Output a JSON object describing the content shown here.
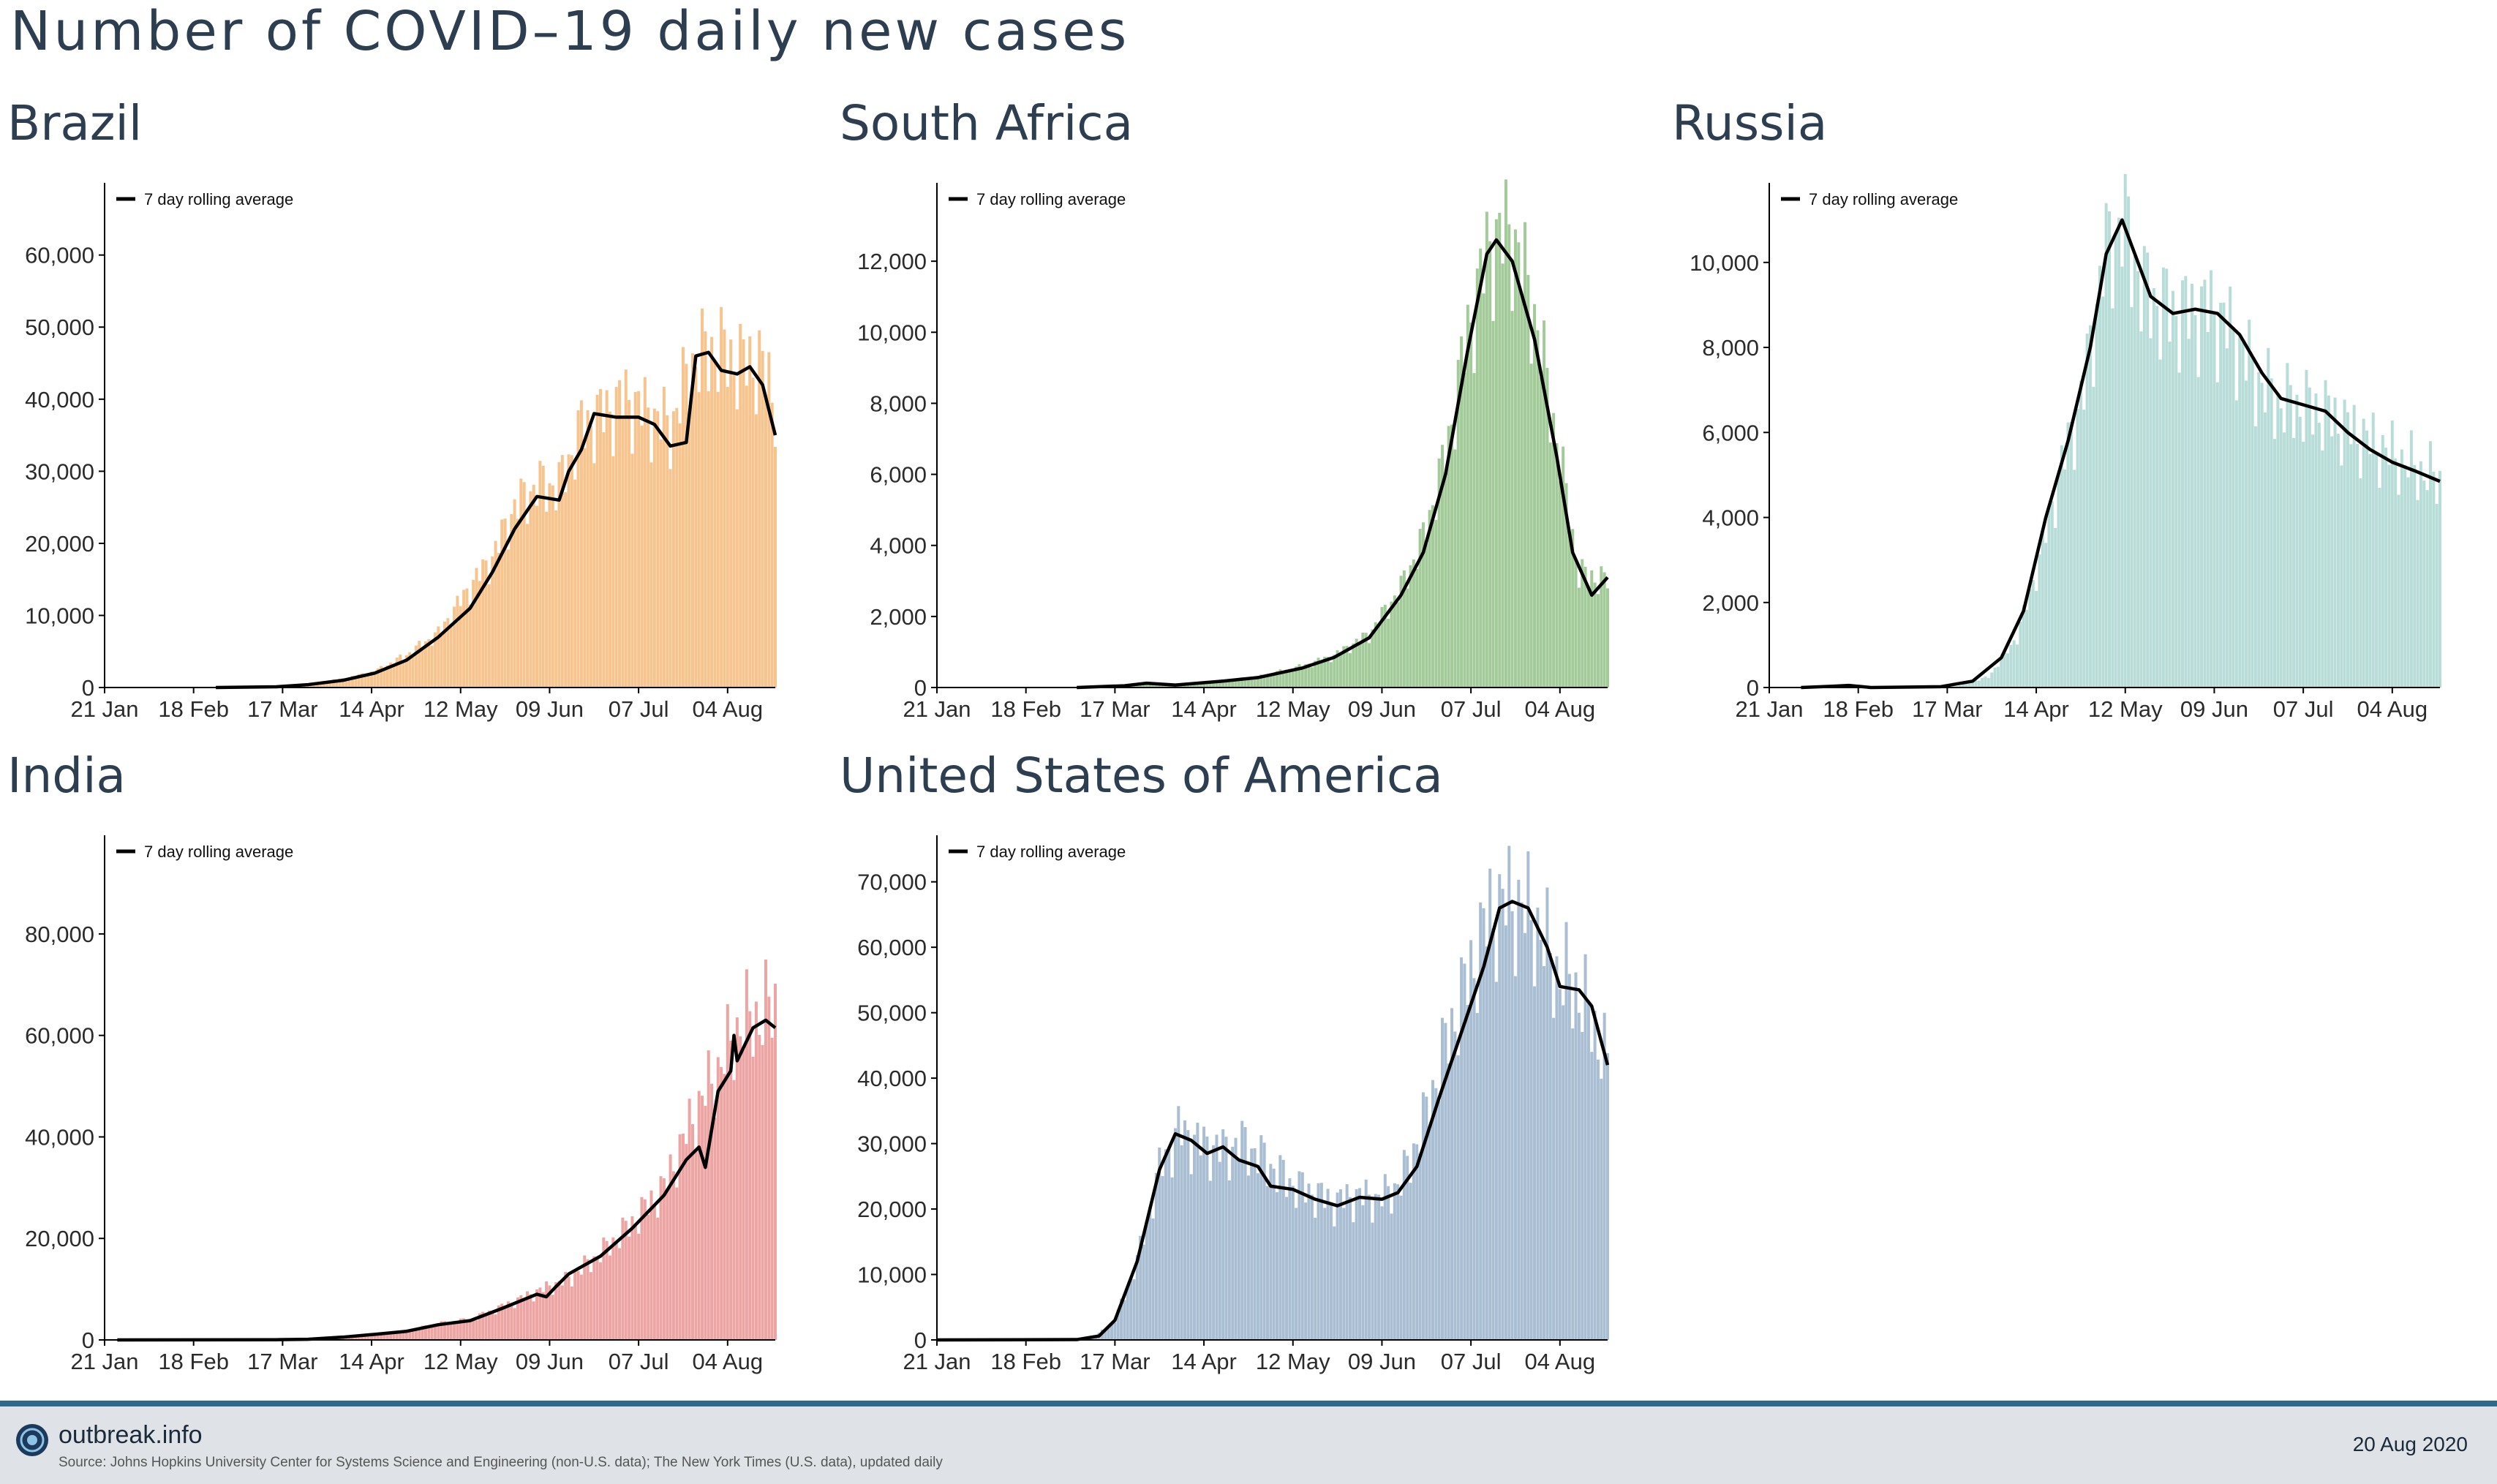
{
  "title": "Number of COVID–19 daily new cases",
  "legend_label": "7 day rolling average",
  "x_tick_labels": [
    "21 Jan",
    "18 Feb",
    "17 Mar",
    "14 Apr",
    "12 May",
    "09 Jun",
    "07 Jul",
    "04 Aug"
  ],
  "footer": {
    "brand": "outbreak.info",
    "source": "Source: Johns Hopkins University Center for Systems Science and Engineering (non-U.S. data); The New York Times (U.S. data), updated daily",
    "date": "20 Aug 2020",
    "logo_icon": "globe-logo-icon"
  },
  "chart_data": [
    {
      "type": "bar",
      "title": "Brazil",
      "color": "#f8c48e",
      "line_color": "#000000",
      "x_range": [
        "2020-01-21",
        "2020-08-19"
      ],
      "ylim": [
        0,
        69000
      ],
      "y_ticks": [
        0,
        10000,
        20000,
        30000,
        40000,
        50000,
        60000
      ],
      "y_tick_labels": [
        "0",
        "10,000",
        "20,000",
        "30,000",
        "40,000",
        "50,000",
        "60,000"
      ],
      "series_start": "2020-02-25",
      "bar_anchors": [
        [
          "2020-02-25",
          0
        ],
        [
          "2020-03-15",
          100
        ],
        [
          "2020-03-25",
          500
        ],
        [
          "2020-04-05",
          1200
        ],
        [
          "2020-04-15",
          2200
        ],
        [
          "2020-04-25",
          4500
        ],
        [
          "2020-05-05",
          7500
        ],
        [
          "2020-05-15",
          14000
        ],
        [
          "2020-05-22",
          18000
        ],
        [
          "2020-05-29",
          25000
        ],
        [
          "2020-06-05",
          28000
        ],
        [
          "2020-06-12",
          28000
        ],
        [
          "2020-06-19",
          36000
        ],
        [
          "2020-06-26",
          38000
        ],
        [
          "2020-07-03",
          40000
        ],
        [
          "2020-07-10",
          38000
        ],
        [
          "2020-07-17",
          36000
        ],
        [
          "2020-07-24",
          45000
        ],
        [
          "2020-07-31",
          47000
        ],
        [
          "2020-08-07",
          45000
        ],
        [
          "2020-08-14",
          45000
        ],
        [
          "2020-08-19",
          40000
        ]
      ],
      "rolling_avg": [
        [
          "2020-02-25",
          0
        ],
        [
          "2020-03-15",
          100
        ],
        [
          "2020-03-25",
          400
        ],
        [
          "2020-04-05",
          1000
        ],
        [
          "2020-04-15",
          2000
        ],
        [
          "2020-04-25",
          3800
        ],
        [
          "2020-05-05",
          7000
        ],
        [
          "2020-05-15",
          11000
        ],
        [
          "2020-05-22",
          16000
        ],
        [
          "2020-05-29",
          22000
        ],
        [
          "2020-06-05",
          26500
        ],
        [
          "2020-06-12",
          26000
        ],
        [
          "2020-06-15",
          30000
        ],
        [
          "2020-06-19",
          33000
        ],
        [
          "2020-06-23",
          38000
        ],
        [
          "2020-06-30",
          37500
        ],
        [
          "2020-07-07",
          37500
        ],
        [
          "2020-07-12",
          36500
        ],
        [
          "2020-07-17",
          33500
        ],
        [
          "2020-07-22",
          34000
        ],
        [
          "2020-07-25",
          46000
        ],
        [
          "2020-07-29",
          46500
        ],
        [
          "2020-08-02",
          44000
        ],
        [
          "2020-08-07",
          43500
        ],
        [
          "2020-08-11",
          44500
        ],
        [
          "2020-08-15",
          42000
        ],
        [
          "2020-08-19",
          35000
        ]
      ]
    },
    {
      "type": "bar",
      "title": "South Africa",
      "color": "#a3cb99",
      "line_color": "#000000",
      "x_range": [
        "2020-01-21",
        "2020-08-19"
      ],
      "ylim": [
        0,
        14000
      ],
      "y_ticks": [
        0,
        2000,
        4000,
        6000,
        8000,
        10000,
        12000
      ],
      "y_tick_labels": [
        "0",
        "2,000",
        "4,000",
        "6,000",
        "8,000",
        "10,000",
        "12,000"
      ],
      "series_start": "2020-03-05",
      "bar_anchors": [
        [
          "2020-03-05",
          0
        ],
        [
          "2020-03-20",
          60
        ],
        [
          "2020-03-27",
          150
        ],
        [
          "2020-04-05",
          70
        ],
        [
          "2020-04-20",
          200
        ],
        [
          "2020-05-01",
          300
        ],
        [
          "2020-05-15",
          600
        ],
        [
          "2020-05-25",
          900
        ],
        [
          "2020-06-05",
          1500
        ],
        [
          "2020-06-15",
          2800
        ],
        [
          "2020-06-22",
          4200
        ],
        [
          "2020-06-29",
          6500
        ],
        [
          "2020-07-06",
          10000
        ],
        [
          "2020-07-13",
          12500
        ],
        [
          "2020-07-20",
          12800
        ],
        [
          "2020-07-27",
          10500
        ],
        [
          "2020-08-03",
          7000
        ],
        [
          "2020-08-10",
          3200
        ],
        [
          "2020-08-19",
          3000
        ]
      ],
      "rolling_avg": [
        [
          "2020-03-05",
          0
        ],
        [
          "2020-03-20",
          50
        ],
        [
          "2020-03-27",
          120
        ],
        [
          "2020-04-05",
          70
        ],
        [
          "2020-04-20",
          180
        ],
        [
          "2020-05-01",
          280
        ],
        [
          "2020-05-15",
          550
        ],
        [
          "2020-05-25",
          850
        ],
        [
          "2020-06-05",
          1400
        ],
        [
          "2020-06-15",
          2600
        ],
        [
          "2020-06-22",
          3800
        ],
        [
          "2020-06-29",
          6000
        ],
        [
          "2020-07-06",
          9500
        ],
        [
          "2020-07-12",
          12200
        ],
        [
          "2020-07-15",
          12600
        ],
        [
          "2020-07-20",
          12000
        ],
        [
          "2020-07-27",
          9800
        ],
        [
          "2020-08-03",
          6500
        ],
        [
          "2020-08-08",
          3800
        ],
        [
          "2020-08-14",
          2600
        ],
        [
          "2020-08-19",
          3100
        ]
      ]
    },
    {
      "type": "bar",
      "title": "Russia",
      "color": "#b8ddd9",
      "line_color": "#000000",
      "x_range": [
        "2020-01-21",
        "2020-08-19"
      ],
      "ylim": [
        0,
        11700
      ],
      "y_ticks": [
        0,
        2000,
        4000,
        6000,
        8000,
        10000
      ],
      "y_tick_labels": [
        "0",
        "2,000",
        "4,000",
        "6,000",
        "8,000",
        "10,000"
      ],
      "series_start": "2020-01-31",
      "bar_anchors": [
        [
          "2020-01-31",
          0
        ],
        [
          "2020-02-15",
          40
        ],
        [
          "2020-03-01",
          0
        ],
        [
          "2020-03-20",
          30
        ],
        [
          "2020-03-30",
          250
        ],
        [
          "2020-04-08",
          1200
        ],
        [
          "2020-04-15",
          3000
        ],
        [
          "2020-04-22",
          5200
        ],
        [
          "2020-04-29",
          7000
        ],
        [
          "2020-05-05",
          10000
        ],
        [
          "2020-05-11",
          11000
        ],
        [
          "2020-05-18",
          9300
        ],
        [
          "2020-05-25",
          8900
        ],
        [
          "2020-06-01",
          8800
        ],
        [
          "2020-06-08",
          8900
        ],
        [
          "2020-06-15",
          8300
        ],
        [
          "2020-06-22",
          7300
        ],
        [
          "2020-06-29",
          6700
        ],
        [
          "2020-07-13",
          6500
        ],
        [
          "2020-07-27",
          5800
        ],
        [
          "2020-08-10",
          5200
        ],
        [
          "2020-08-19",
          4850
        ]
      ],
      "rolling_avg": [
        [
          "2020-01-31",
          0
        ],
        [
          "2020-02-10",
          30
        ],
        [
          "2020-02-15",
          50
        ],
        [
          "2020-02-22",
          0
        ],
        [
          "2020-03-15",
          20
        ],
        [
          "2020-03-25",
          150
        ],
        [
          "2020-04-03",
          700
        ],
        [
          "2020-04-10",
          1800
        ],
        [
          "2020-04-17",
          4000
        ],
        [
          "2020-04-24",
          5800
        ],
        [
          "2020-05-01",
          8000
        ],
        [
          "2020-05-06",
          10200
        ],
        [
          "2020-05-11",
          11000
        ],
        [
          "2020-05-15",
          10200
        ],
        [
          "2020-05-20",
          9200
        ],
        [
          "2020-05-27",
          8800
        ],
        [
          "2020-06-03",
          8900
        ],
        [
          "2020-06-10",
          8800
        ],
        [
          "2020-06-17",
          8300
        ],
        [
          "2020-06-24",
          7400
        ],
        [
          "2020-06-30",
          6800
        ],
        [
          "2020-07-07",
          6650
        ],
        [
          "2020-07-14",
          6500
        ],
        [
          "2020-07-21",
          6000
        ],
        [
          "2020-07-28",
          5600
        ],
        [
          "2020-08-04",
          5300
        ],
        [
          "2020-08-11",
          5100
        ],
        [
          "2020-08-19",
          4850
        ]
      ]
    },
    {
      "type": "bar",
      "title": "India",
      "color": "#eda5a4",
      "line_color": "#000000",
      "x_range": [
        "2020-01-21",
        "2020-08-19"
      ],
      "ylim": [
        0,
        98000
      ],
      "y_ticks": [
        0,
        20000,
        40000,
        60000,
        80000
      ],
      "y_tick_labels": [
        "0",
        "20,000",
        "40,000",
        "60,000",
        "80,000"
      ],
      "series_start": "2020-01-25",
      "bar_anchors": [
        [
          "2020-01-25",
          0
        ],
        [
          "2020-03-15",
          50
        ],
        [
          "2020-03-25",
          150
        ],
        [
          "2020-04-05",
          600
        ],
        [
          "2020-04-15",
          1200
        ],
        [
          "2020-04-25",
          1800
        ],
        [
          "2020-05-05",
          3200
        ],
        [
          "2020-05-15",
          4000
        ],
        [
          "2020-05-25",
          6500
        ],
        [
          "2020-06-05",
          9500
        ],
        [
          "2020-06-15",
          12000
        ],
        [
          "2020-06-25",
          17000
        ],
        [
          "2020-07-05",
          23000
        ],
        [
          "2020-07-15",
          30000
        ],
        [
          "2020-07-25",
          45000
        ],
        [
          "2020-08-01",
          53000
        ],
        [
          "2020-08-08",
          62000
        ],
        [
          "2020-08-15",
          64000
        ],
        [
          "2020-08-19",
          66000
        ]
      ],
      "rolling_avg": [
        [
          "2020-01-25",
          0
        ],
        [
          "2020-03-15",
          40
        ],
        [
          "2020-03-25",
          130
        ],
        [
          "2020-04-05",
          550
        ],
        [
          "2020-04-15",
          1100
        ],
        [
          "2020-04-25",
          1700
        ],
        [
          "2020-05-05",
          3000
        ],
        [
          "2020-05-15",
          3800
        ],
        [
          "2020-05-25",
          6200
        ],
        [
          "2020-06-05",
          9000
        ],
        [
          "2020-06-08",
          8500
        ],
        [
          "2020-06-11",
          10500
        ],
        [
          "2020-06-15",
          13000
        ],
        [
          "2020-06-25",
          16500
        ],
        [
          "2020-07-05",
          22000
        ],
        [
          "2020-07-15",
          28500
        ],
        [
          "2020-07-22",
          35500
        ],
        [
          "2020-07-26",
          38000
        ],
        [
          "2020-07-28",
          34000
        ],
        [
          "2020-08-01",
          49000
        ],
        [
          "2020-08-05",
          53000
        ],
        [
          "2020-08-06",
          60000
        ],
        [
          "2020-08-07",
          55000
        ],
        [
          "2020-08-12",
          61500
        ],
        [
          "2020-08-16",
          63000
        ],
        [
          "2020-08-19",
          61500
        ]
      ]
    },
    {
      "type": "bar",
      "title": "United States of America",
      "color": "#a9bed3",
      "line_color": "#000000",
      "x_range": [
        "2020-01-21",
        "2020-08-19"
      ],
      "ylim": [
        0,
        76000
      ],
      "y_ticks": [
        0,
        10000,
        20000,
        30000,
        40000,
        50000,
        60000,
        70000
      ],
      "y_tick_labels": [
        "0",
        "10,000",
        "20,000",
        "30,000",
        "40,000",
        "50,000",
        "60,000",
        "70,000"
      ],
      "series_start": "2020-01-21",
      "bar_anchors": [
        [
          "2020-01-21",
          0
        ],
        [
          "2020-03-10",
          200
        ],
        [
          "2020-03-17",
          3000
        ],
        [
          "2020-03-24",
          12000
        ],
        [
          "2020-03-31",
          26000
        ],
        [
          "2020-04-06",
          32000
        ],
        [
          "2020-04-13",
          30000
        ],
        [
          "2020-04-20",
          29000
        ],
        [
          "2020-04-27",
          30000
        ],
        [
          "2020-05-04",
          27000
        ],
        [
          "2020-05-11",
          24000
        ],
        [
          "2020-05-18",
          22500
        ],
        [
          "2020-05-25",
          21000
        ],
        [
          "2020-06-01",
          22000
        ],
        [
          "2020-06-08",
          21500
        ],
        [
          "2020-06-15",
          24000
        ],
        [
          "2020-06-22",
          33000
        ],
        [
          "2020-06-29",
          45000
        ],
        [
          "2020-07-06",
          55000
        ],
        [
          "2020-07-13",
          65000
        ],
        [
          "2020-07-20",
          67000
        ],
        [
          "2020-07-27",
          64000
        ],
        [
          "2020-08-03",
          56000
        ],
        [
          "2020-08-10",
          53000
        ],
        [
          "2020-08-17",
          45000
        ],
        [
          "2020-08-19",
          42000
        ]
      ],
      "rolling_avg": [
        [
          "2020-01-21",
          0
        ],
        [
          "2020-03-05",
          50
        ],
        [
          "2020-03-12",
          600
        ],
        [
          "2020-03-17",
          3000
        ],
        [
          "2020-03-24",
          12000
        ],
        [
          "2020-03-31",
          26000
        ],
        [
          "2020-04-05",
          31500
        ],
        [
          "2020-04-10",
          30500
        ],
        [
          "2020-04-15",
          28500
        ],
        [
          "2020-04-20",
          29500
        ],
        [
          "2020-04-25",
          27500
        ],
        [
          "2020-05-01",
          26500
        ],
        [
          "2020-05-05",
          23500
        ],
        [
          "2020-05-12",
          23000
        ],
        [
          "2020-05-19",
          21500
        ],
        [
          "2020-05-26",
          20500
        ],
        [
          "2020-06-02",
          21800
        ],
        [
          "2020-06-09",
          21500
        ],
        [
          "2020-06-14",
          22500
        ],
        [
          "2020-06-20",
          26500
        ],
        [
          "2020-06-27",
          37000
        ],
        [
          "2020-07-04",
          47000
        ],
        [
          "2020-07-11",
          57000
        ],
        [
          "2020-07-16",
          66000
        ],
        [
          "2020-07-20",
          67000
        ],
        [
          "2020-07-25",
          66000
        ],
        [
          "2020-07-31",
          60000
        ],
        [
          "2020-08-04",
          54000
        ],
        [
          "2020-08-10",
          53500
        ],
        [
          "2020-08-14",
          51000
        ],
        [
          "2020-08-19",
          42000
        ]
      ]
    }
  ]
}
